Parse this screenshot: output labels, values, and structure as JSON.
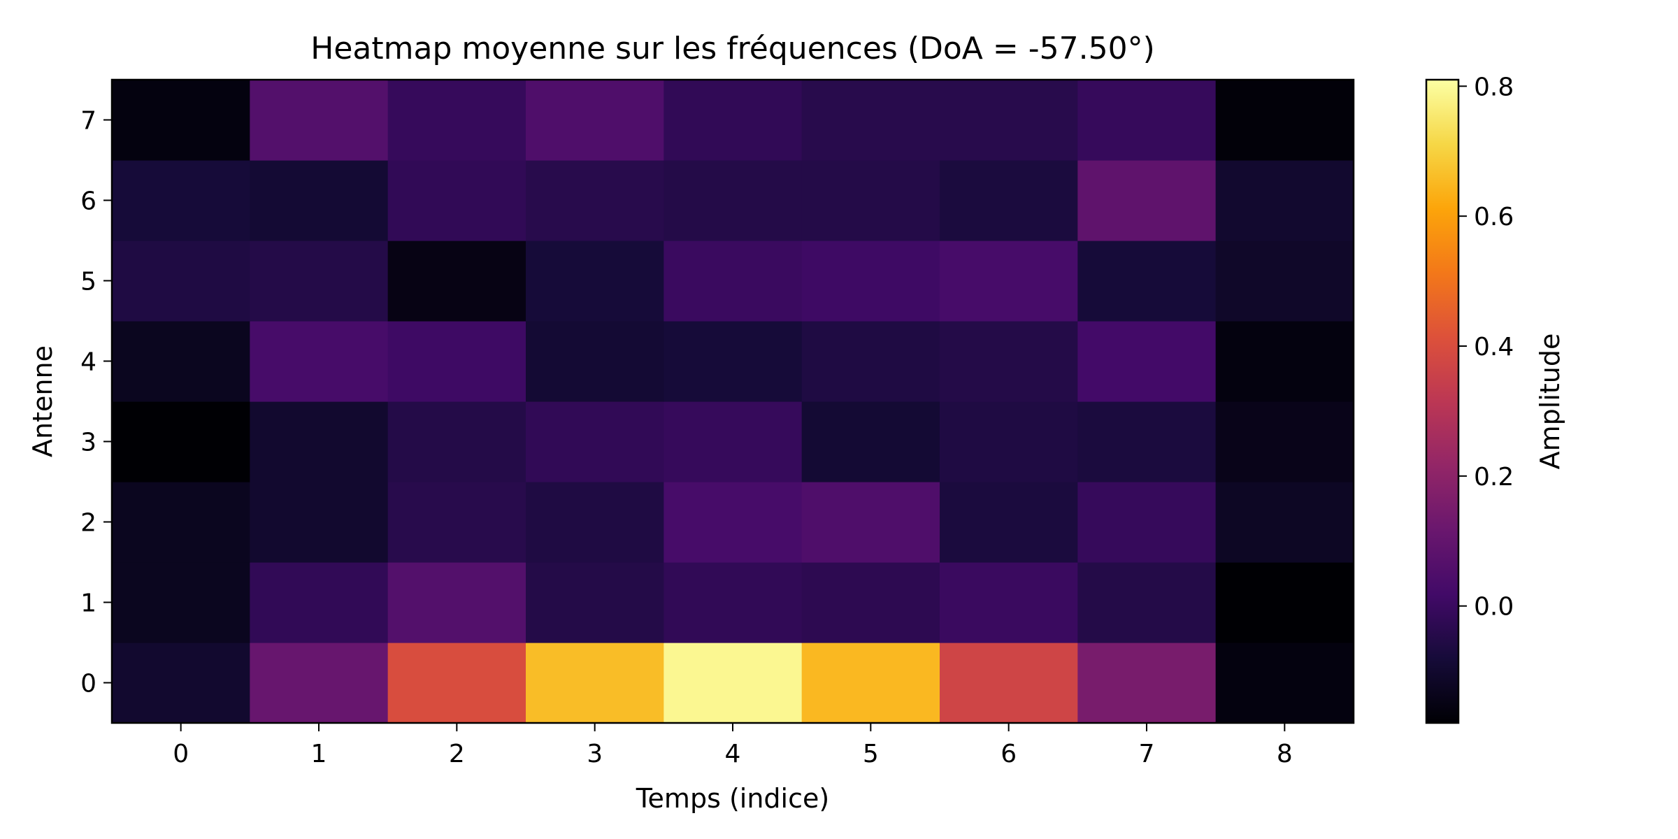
{
  "chart_data": {
    "type": "heatmap",
    "title": "Heatmap moyenne sur les fréquences (DoA = -57.50°)",
    "xlabel": "Temps (indice)",
    "ylabel": "Antenne",
    "colorbar_label": "Amplitude",
    "colormap": "inferno",
    "x_ticks": [
      "0",
      "1",
      "2",
      "3",
      "4",
      "5",
      "6",
      "7",
      "8"
    ],
    "y_ticks": [
      "0",
      "1",
      "2",
      "3",
      "4",
      "5",
      "6",
      "7"
    ],
    "vmin": -0.18,
    "vmax": 0.81,
    "colorbar_ticks": [
      "0.0",
      "0.2",
      "0.4",
      "0.6",
      "0.8"
    ],
    "colorbar_tick_values": [
      0.0,
      0.2,
      0.4,
      0.6,
      0.8
    ],
    "values": [
      [
        -0.1,
        0.11,
        0.4,
        0.66,
        0.79,
        0.65,
        0.37,
        0.15,
        -0.16
      ],
      [
        -0.13,
        -0.02,
        0.06,
        -0.05,
        -0.02,
        -0.03,
        0.0,
        -0.05,
        -0.18
      ],
      [
        -0.13,
        -0.1,
        -0.04,
        -0.06,
        0.03,
        0.05,
        -0.07,
        -0.01,
        -0.12
      ],
      [
        -0.18,
        -0.1,
        -0.05,
        -0.02,
        -0.01,
        -0.09,
        -0.06,
        -0.07,
        -0.14
      ],
      [
        -0.13,
        0.03,
        0.01,
        -0.09,
        -0.08,
        -0.06,
        -0.05,
        0.02,
        -0.16
      ],
      [
        -0.06,
        -0.05,
        -0.15,
        -0.08,
        0.0,
        0.01,
        0.03,
        -0.08,
        -0.11
      ],
      [
        -0.08,
        -0.09,
        -0.02,
        -0.04,
        -0.05,
        -0.05,
        -0.07,
        0.09,
        -0.1
      ],
      [
        -0.16,
        0.06,
        -0.01,
        0.05,
        -0.02,
        -0.04,
        -0.04,
        -0.01,
        -0.17
      ]
    ]
  }
}
